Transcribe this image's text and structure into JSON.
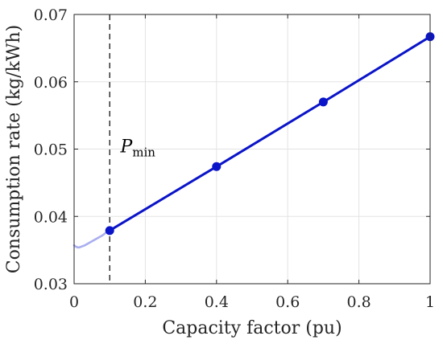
{
  "chart_data": {
    "type": "line",
    "title": "",
    "xlabel": "Capacity factor (pu)",
    "ylabel": "Consumption rate (kg/kWh)",
    "xlim": [
      0,
      1
    ],
    "ylim": [
      0.03,
      0.07
    ],
    "xticks": [
      0,
      0.2,
      0.4,
      0.6,
      0.8,
      1
    ],
    "xtick_labels": [
      "0",
      "0.2",
      "0.4",
      "0.6",
      "0.8",
      "1"
    ],
    "yticks": [
      0.03,
      0.04,
      0.05,
      0.06,
      0.07
    ],
    "ytick_labels": [
      "0.03",
      "0.04",
      "0.05",
      "0.06",
      "0.07"
    ],
    "grid": true,
    "series": [
      {
        "style": "solid-dark",
        "color": "#0a14c8",
        "x": [
          0.1,
          0.4,
          0.7,
          1.0
        ],
        "y": [
          0.0379,
          0.0474,
          0.057,
          0.0667
        ],
        "markers": true
      },
      {
        "style": "faded-curve",
        "color": "#a9aef0",
        "x": [
          0.0,
          0.005,
          0.01,
          0.015,
          0.02,
          0.03,
          0.04,
          0.05,
          0.06,
          0.07,
          0.08,
          0.09,
          0.1
        ],
        "y": [
          0.0357,
          0.0355,
          0.0354,
          0.0354,
          0.0355,
          0.0357,
          0.036,
          0.0363,
          0.0366,
          0.0369,
          0.0372,
          0.0376,
          0.0379
        ],
        "markers": false
      }
    ],
    "reference_line": {
      "orientation": "vertical",
      "x": 0.1,
      "style": "dashed",
      "color": "#000000"
    },
    "annotation": {
      "base": "P",
      "subscript": "min",
      "x": 0.13,
      "y": 0.0495
    }
  }
}
